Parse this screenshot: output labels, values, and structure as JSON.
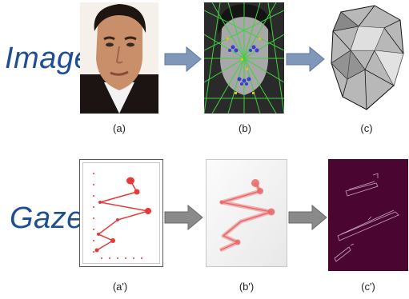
{
  "rows": [
    {
      "label": "Image",
      "captions": [
        "(a)",
        "(b)",
        "(c)"
      ]
    },
    {
      "label": "Gaze",
      "captions": [
        "(a')",
        "(b')",
        "(c')"
      ]
    }
  ],
  "colors": {
    "label_blue": "#1f4e96",
    "arrow_fill": "#7f97b8",
    "gaze_red": "#e33a3a",
    "dark_panel": "#4a0630"
  }
}
